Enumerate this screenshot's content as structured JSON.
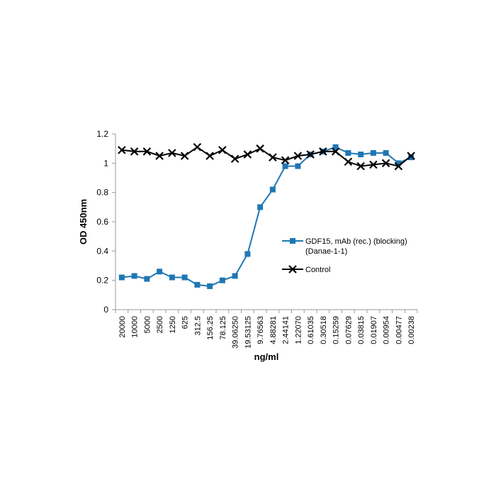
{
  "chart_data": {
    "type": "line",
    "title": "",
    "xlabel": "ng/ml",
    "ylabel": "OD 450nm",
    "ylim": [
      0,
      1.2
    ],
    "yticks": [
      "0",
      "0.2",
      "0.4",
      "0.6",
      "0.8",
      "1",
      "1.2"
    ],
    "categories": [
      "20000",
      "10000",
      "5000",
      "2500",
      "1250",
      "625",
      "312.5",
      "156.25",
      "78.125",
      "39.06250",
      "19.53125",
      "9.76563",
      "4.88281",
      "2.44141",
      "1.22070",
      "0.61035",
      "0.30518",
      "0.15259",
      "0.07629",
      "0.03815",
      "0.01907",
      "0.00954",
      "0.00477",
      "0.00238"
    ],
    "grid": false,
    "legend_position": "right",
    "series": [
      {
        "name": "GDF15, mAb (rec.) (blocking) (Danae-1-1)",
        "legend_lines": [
          "GDF15, mAb (rec.) (blocking)",
          "(Danae-1-1)"
        ],
        "color": "#1f77b4",
        "marker": "square",
        "values": [
          0.22,
          0.23,
          0.21,
          0.26,
          0.22,
          0.22,
          0.17,
          0.16,
          0.2,
          0.23,
          0.38,
          0.7,
          0.82,
          0.98,
          0.98,
          1.06,
          1.08,
          1.11,
          1.07,
          1.06,
          1.07,
          1.07,
          1.0,
          1.04
        ]
      },
      {
        "name": "Control",
        "legend_lines": [
          "Control"
        ],
        "color": "#000000",
        "marker": "x",
        "values": [
          1.09,
          1.08,
          1.08,
          1.05,
          1.07,
          1.05,
          1.11,
          1.05,
          1.09,
          1.03,
          1.06,
          1.1,
          1.04,
          1.02,
          1.05,
          1.06,
          1.08,
          1.08,
          1.01,
          0.98,
          0.99,
          1.0,
          0.98,
          1.05
        ]
      }
    ]
  }
}
